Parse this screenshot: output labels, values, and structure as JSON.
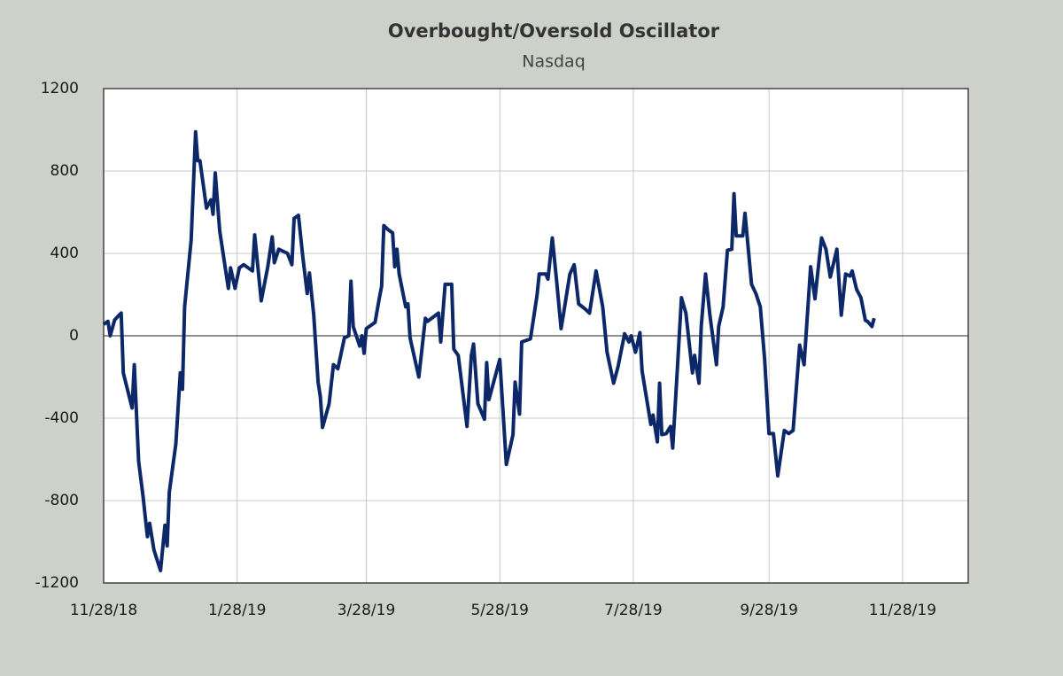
{
  "chart_data": {
    "type": "line",
    "title": "Overbought/Oversold  Oscillator",
    "subtitle": "Nasdaq",
    "color": "#0c2869",
    "grid": true,
    "ylim": [
      -1200,
      1200
    ],
    "yticks": [
      -1200,
      -800,
      -400,
      0,
      400,
      800,
      1200
    ],
    "xlim": [
      "11/28/18",
      "12/28/19"
    ],
    "xticks": [
      "11/28/18",
      "1/28/19",
      "3/28/19",
      "5/28/19",
      "7/28/19",
      "9/28/19",
      "11/28/19"
    ],
    "x": [
      "11/28/18",
      "11/30/18",
      "12/1/18",
      "12/3/18",
      "12/5/18",
      "12/6/18",
      "12/7/18",
      "12/11/18",
      "12/12/18",
      "12/14/18",
      "12/16/18",
      "12/18/18",
      "12/19/18",
      "12/21/18",
      "12/24/18",
      "12/26/18",
      "12/27/18",
      "12/28/18",
      "12/31/18",
      "1/2/19",
      "1/3/19",
      "1/4/19",
      "1/7/19",
      "1/9/19",
      "1/10/19",
      "1/11/19",
      "1/14/19",
      "1/16/19",
      "1/17/19",
      "1/18/19",
      "1/20/19",
      "1/24/19",
      "1/25/19",
      "1/27/19",
      "1/29/19",
      "1/31/19",
      "2/4/19",
      "2/5/19",
      "2/8/19",
      "2/11/19",
      "2/13/19",
      "2/14/19",
      "2/16/19",
      "2/20/19",
      "2/22/19",
      "2/23/19",
      "2/25/19",
      "2/27/19",
      "3/1/19",
      "3/2/19",
      "3/4/19",
      "3/6/19",
      "3/7/19",
      "3/8/19",
      "3/11/19",
      "3/13/19",
      "3/15/19",
      "3/18/19",
      "3/20/19",
      "3/21/19",
      "3/22/19",
      "3/25/19",
      "3/26/19",
      "3/27/19",
      "3/28/19",
      "4/1/19",
      "4/3/19",
      "4/4/19",
      "4/5/19",
      "4/7/19",
      "4/9/19",
      "4/10/19",
      "4/11/19",
      "4/12/19",
      "4/15/19",
      "4/16/19",
      "4/17/19",
      "4/21/19",
      "4/24/19",
      "4/25/19",
      "4/30/19",
      "5/1/19",
      "5/3/19",
      "5/6/19",
      "5/7/19",
      "5/9/19",
      "5/13/19",
      "5/15/19",
      "5/16/19",
      "5/18/19",
      "5/21/19",
      "5/22/19",
      "5/23/19",
      "5/28/19",
      "5/31/19",
      "6/3/19",
      "6/4/19",
      "6/6/19",
      "6/7/19",
      "6/11/19",
      "6/14/19",
      "6/15/19",
      "6/18/19",
      "6/19/19",
      "6/21/19",
      "6/23/19",
      "6/25/19",
      "6/26/19",
      "6/29/19",
      "7/1/19",
      "7/3/19",
      "7/6/19",
      "7/8/19",
      "7/11/19",
      "7/14/19",
      "7/16/19",
      "7/19/19",
      "7/21/19",
      "7/24/19",
      "7/26/19",
      "7/27/19",
      "7/29/19",
      "7/31/19",
      "8/1/19",
      "8/5/19",
      "8/6/19",
      "8/8/19",
      "8/9/19",
      "8/10/19",
      "8/12/19",
      "8/14/19",
      "8/15/19",
      "8/17/19",
      "8/19/19",
      "8/21/19",
      "8/24/19",
      "8/25/19",
      "8/27/19",
      "8/28/19",
      "8/30/19",
      "9/1/19",
      "9/4/19",
      "9/5/19",
      "9/7/19",
      "9/9/19",
      "9/11/19",
      "9/12/19",
      "9/13/19",
      "9/16/19",
      "9/17/19",
      "9/20/19",
      "9/22/19",
      "9/24/19",
      "9/26/19",
      "9/28/19",
      "9/30/19",
      "10/2/19",
      "10/5/19",
      "10/7/19",
      "10/9/19",
      "10/12/19",
      "10/14/19",
      "10/17/19",
      "10/19/19",
      "10/21/19",
      "10/22/19",
      "10/24/19",
      "10/26/19",
      "10/29/19",
      "10/31/19",
      "11/2/19",
      "11/4/19",
      "11/5/19",
      "11/7/19",
      "11/9/19",
      "11/11/19",
      "11/12/19",
      "11/14/19",
      "11/15/19"
    ],
    "values": [
      56,
      70,
      0,
      77,
      100,
      110,
      -180,
      -350,
      -140,
      -610,
      -780,
      -975,
      -910,
      -1040,
      -1140,
      -920,
      -1020,
      -760,
      -525,
      -180,
      -260,
      140,
      465,
      990,
      850,
      850,
      620,
      660,
      590,
      790,
      510,
      230,
      330,
      230,
      330,
      345,
      315,
      490,
      170,
      335,
      480,
      355,
      420,
      400,
      345,
      570,
      585,
      380,
      205,
      305,
      100,
      -225,
      -295,
      -445,
      -330,
      -140,
      -160,
      -10,
      0,
      265,
      45,
      -50,
      0,
      -85,
      35,
      65,
      185,
      240,
      535,
      515,
      500,
      335,
      420,
      300,
      140,
      155,
      -10,
      -200,
      85,
      70,
      110,
      -30,
      250,
      250,
      -65,
      -95,
      -440,
      -95,
      -40,
      -330,
      -405,
      -130,
      -310,
      -115,
      -625,
      -480,
      -225,
      -380,
      -30,
      -15,
      195,
      300,
      300,
      275,
      475,
      260,
      35,
      100,
      300,
      345,
      155,
      130,
      110,
      315,
      140,
      -80,
      -230,
      -150,
      10,
      -30,
      0,
      -80,
      15,
      -170,
      -430,
      -385,
      -515,
      -230,
      -480,
      -475,
      -440,
      -545,
      -180,
      185,
      110,
      -180,
      -95,
      -230,
      45,
      300,
      100,
      -140,
      45,
      140,
      415,
      420,
      690,
      485,
      485,
      595,
      250,
      205,
      140,
      -115,
      -475,
      -475,
      -680,
      -460,
      -475,
      -460,
      -45,
      -140,
      335,
      180,
      380,
      475,
      420,
      285,
      420,
      100,
      300,
      290,
      315,
      225,
      185,
      75,
      70,
      45,
      85
    ]
  }
}
